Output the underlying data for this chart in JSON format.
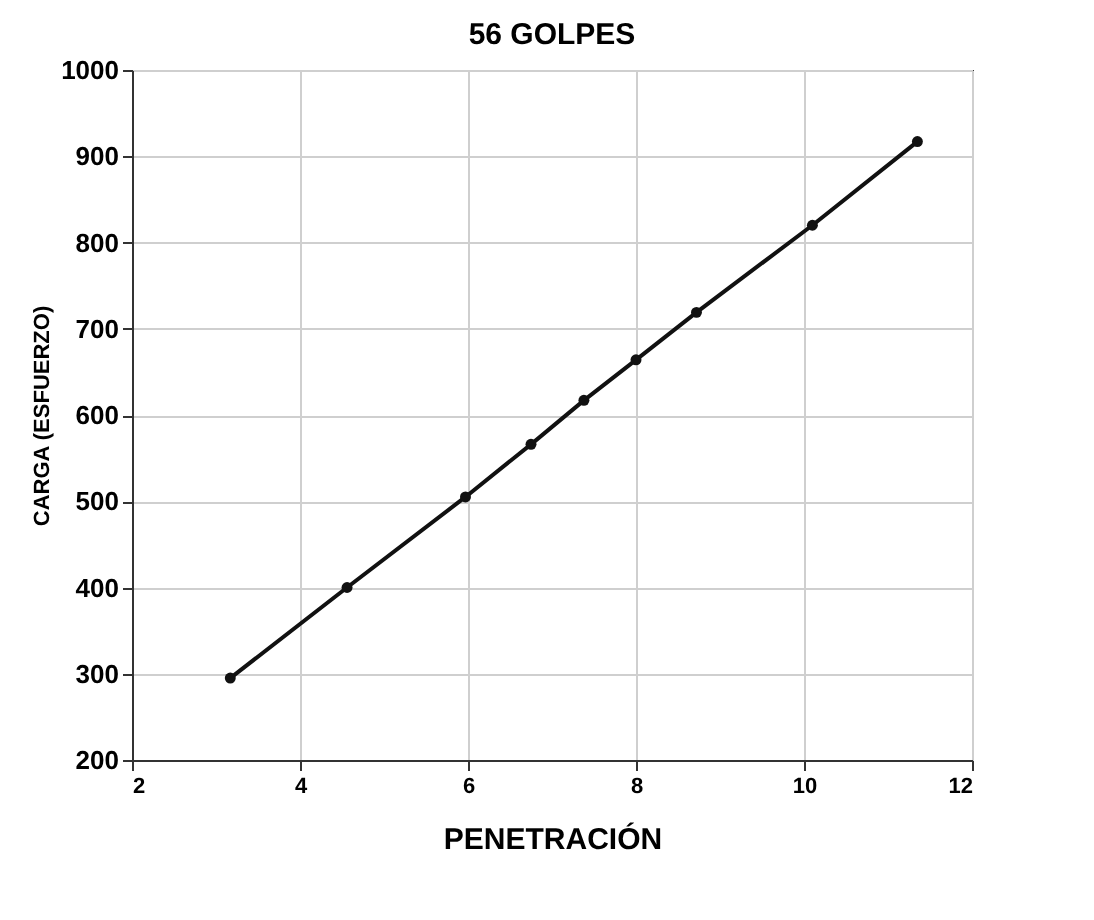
{
  "chart_data": {
    "type": "line",
    "title": "56 GOLPES",
    "xlabel": "PENETRACIÓN",
    "ylabel": "CARGA (ESFUERZO)",
    "x": [
      3.17,
      4.56,
      5.97,
      6.75,
      7.38,
      8.0,
      8.72,
      10.1,
      11.35
    ],
    "series": [
      {
        "color": "#111111",
        "values": [
          295,
          400,
          505,
          566,
          617,
          664,
          719,
          820,
          917
        ]
      }
    ],
    "xlim": [
      2,
      12
    ],
    "xticks": [
      2,
      4,
      6,
      8,
      10,
      12
    ],
    "ylim": [
      200,
      1000
    ],
    "yticks": [
      200,
      300,
      400,
      500,
      600,
      700,
      800,
      900,
      1000
    ],
    "grid": true,
    "marker": "circle",
    "line_style": "solid"
  }
}
